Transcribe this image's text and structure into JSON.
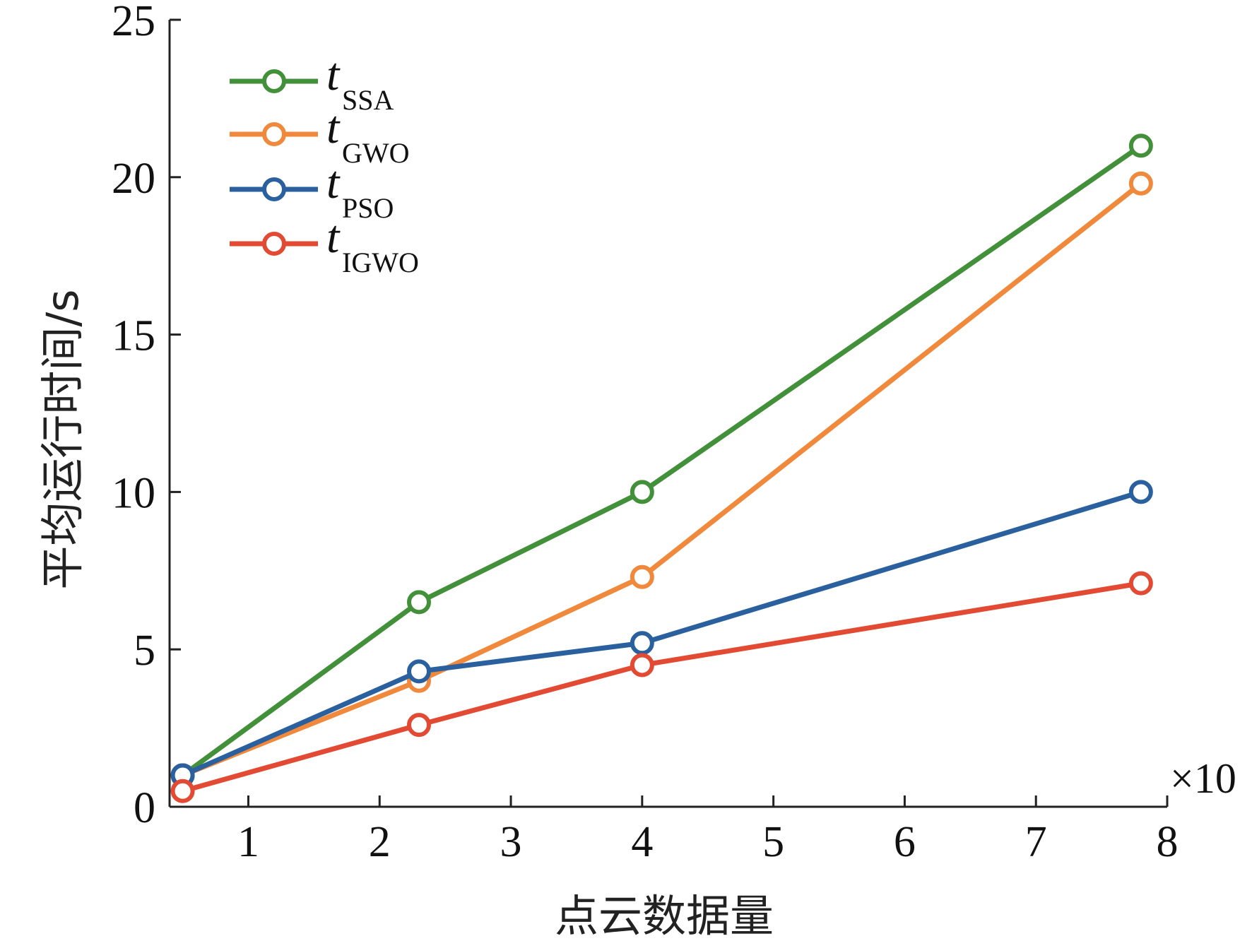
{
  "chart_data": {
    "type": "line",
    "xlabel": "点云数据量",
    "ylabel": "平均运行时间/s",
    "x_multiplier": "×10",
    "xlim": [
      0.4,
      8
    ],
    "ylim": [
      0,
      25
    ],
    "x_ticks": [
      "1",
      "2",
      "3",
      "4",
      "5",
      "6",
      "7",
      "8"
    ],
    "y_ticks": [
      "0",
      "5",
      "10",
      "15",
      "20",
      "25"
    ],
    "x": [
      0.5,
      2.3,
      4.0,
      7.8
    ],
    "series": [
      {
        "name": "t",
        "sub": "SSA",
        "color": "#43903a",
        "values": [
          1.0,
          6.5,
          10.0,
          21.0
        ]
      },
      {
        "name": "t",
        "sub": "GWO",
        "color": "#f0893b",
        "values": [
          1.0,
          4.0,
          7.3,
          19.8
        ]
      },
      {
        "name": "t",
        "sub": "PSO",
        "color": "#2a609e",
        "values": [
          1.0,
          4.3,
          5.2,
          10.0
        ]
      },
      {
        "name": "t",
        "sub": "IGWO",
        "color": "#e24a33",
        "values": [
          0.5,
          2.6,
          4.5,
          7.1
        ]
      }
    ],
    "legend_position": "top-left",
    "grid": false
  }
}
